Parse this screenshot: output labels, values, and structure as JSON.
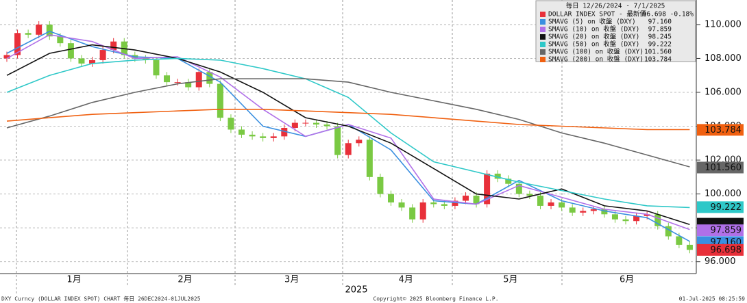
{
  "chart_data": {
    "type": "candlestick",
    "legend_title": "毎日 12/26/2024 - 7/1/2025",
    "year_label": "2025",
    "footer_left": "DXY Curncy (DOLLAR INDEX SPOT) CHART  毎日 26DEC2024-01JUL2025",
    "footer_center": "Copyright© 2025 Bloomberg Finance L.P.",
    "footer_right": "01-Jul-2025 08:25:59",
    "ylim": [
      95.3,
      111.45
    ],
    "yticks": [
      {
        "value": 96,
        "label": "96.000"
      },
      {
        "value": 98,
        "label": "98.000"
      },
      {
        "value": 100,
        "label": "100.000"
      },
      {
        "value": 102,
        "label": "102.000"
      },
      {
        "value": 104,
        "label": "104.000"
      },
      {
        "value": 106,
        "label": "106.000"
      },
      {
        "value": 108,
        "label": "108.000"
      },
      {
        "value": 110,
        "label": "110.000"
      }
    ],
    "xlim": [
      -0.32,
      64.1
    ],
    "xticks": [
      {
        "value": 6.3,
        "label": "1月"
      },
      {
        "value": 16.7,
        "label": "2月"
      },
      {
        "value": 26.7,
        "label": "3月"
      },
      {
        "value": 37.4,
        "label": "4月"
      },
      {
        "value": 47.2,
        "label": "5月"
      },
      {
        "value": 58.1,
        "label": "6月"
      }
    ],
    "grid": true,
    "up_color": "#e8303a",
    "down_color": "#7ac943",
    "price": {
      "name": "DOLLAR INDEX SPOT - 最新價",
      "color": "#e8303a",
      "change": "-0.18%",
      "last": {
        "value": 96.698,
        "label": "96.698"
      },
      "open": [
        108.0,
        108.2,
        109.5,
        109.4,
        110.0,
        109.3,
        108.9,
        108.0,
        107.7,
        107.9,
        108.5,
        109.0,
        108.2,
        108.0,
        107.9,
        107.0,
        106.6,
        106.6,
        106.3,
        107.2,
        106.5,
        104.5,
        103.8,
        103.5,
        103.4,
        103.3,
        103.4,
        103.9,
        104.2,
        104.2,
        104.1,
        104.0,
        102.3,
        103.0,
        103.2,
        101.0,
        100.0,
        99.5,
        99.2,
        98.5,
        99.5,
        99.4,
        99.3,
        99.6,
        99.9,
        99.4,
        101.2,
        100.9,
        100.6,
        100.0,
        99.9,
        99.3,
        99.5,
        99.2,
        98.9,
        99.0,
        99.1,
        98.8,
        98.5,
        98.4,
        98.7,
        98.8,
        98.1,
        97.5,
        97.0
      ],
      "high": [
        108.4,
        109.7,
        109.7,
        110.2,
        110.2,
        109.5,
        109.1,
        108.2,
        108.1,
        108.7,
        109.2,
        109.2,
        108.4,
        108.2,
        108.1,
        107.2,
        106.8,
        106.8,
        107.4,
        107.4,
        106.7,
        104.7,
        104.0,
        103.7,
        103.6,
        103.6,
        104.1,
        104.4,
        104.4,
        104.4,
        104.3,
        104.2,
        103.2,
        103.4,
        103.4,
        101.2,
        100.2,
        99.7,
        99.4,
        99.7,
        99.7,
        99.6,
        99.8,
        100.1,
        100.1,
        101.4,
        101.4,
        101.1,
        100.8,
        100.2,
        100.1,
        99.7,
        99.7,
        99.4,
        99.2,
        99.3,
        99.3,
        99.0,
        98.7,
        98.9,
        99.0,
        99.0,
        98.3,
        97.7,
        97.2
      ],
      "low": [
        107.8,
        108.0,
        109.2,
        109.2,
        109.1,
        108.7,
        107.8,
        107.5,
        107.5,
        107.7,
        108.3,
        108.0,
        107.8,
        107.7,
        106.8,
        106.4,
        106.4,
        106.1,
        106.1,
        106.3,
        104.3,
        103.6,
        103.3,
        103.2,
        103.1,
        103.1,
        103.2,
        103.7,
        104.0,
        103.9,
        103.8,
        102.1,
        102.1,
        102.8,
        100.8,
        99.8,
        99.3,
        99.0,
        98.3,
        98.3,
        99.2,
        99.1,
        99.1,
        99.4,
        99.2,
        99.2,
        100.7,
        100.4,
        99.8,
        99.7,
        99.1,
        99.1,
        99.0,
        98.7,
        98.7,
        98.8,
        98.6,
        98.3,
        98.2,
        98.2,
        98.5,
        97.9,
        97.3,
        96.8,
        96.5
      ],
      "close": [
        108.2,
        109.5,
        109.4,
        110.0,
        109.3,
        108.9,
        108.0,
        107.7,
        107.9,
        108.5,
        109.0,
        108.2,
        108.0,
        107.9,
        107.0,
        106.6,
        106.6,
        106.3,
        107.2,
        106.5,
        104.5,
        103.8,
        103.5,
        103.4,
        103.3,
        103.4,
        103.9,
        104.2,
        104.2,
        104.1,
        104.0,
        102.3,
        103.0,
        103.2,
        101.0,
        100.0,
        99.5,
        99.2,
        98.5,
        99.5,
        99.4,
        99.3,
        99.6,
        99.9,
        99.4,
        101.2,
        100.9,
        100.6,
        100.0,
        99.9,
        99.3,
        99.5,
        99.2,
        98.9,
        99.0,
        99.1,
        98.8,
        98.5,
        98.4,
        98.7,
        98.8,
        98.1,
        97.5,
        97.0,
        96.7
      ]
    },
    "ma_x": [
      0,
      4,
      8,
      12,
      16,
      20,
      24,
      28,
      32,
      36,
      40,
      44,
      48,
      52,
      56,
      60,
      64
    ],
    "series": [
      {
        "name": "SMAVG (5) on 收盤 (DXY)",
        "color": "#3a8fe0",
        "last": {
          "value": 97.16,
          "label": "97.160"
        },
        "values": [
          108.3,
          109.6,
          108.7,
          108.1,
          108.0,
          106.6,
          104.0,
          103.4,
          104.1,
          102.6,
          99.6,
          99.4,
          100.8,
          99.6,
          99.0,
          98.6,
          97.2
        ]
      },
      {
        "name": "SMAVG (10) on 收盤 (DXY)",
        "color": "#b070e8",
        "last": {
          "value": 97.859,
          "label": "97.859"
        },
        "values": [
          108.0,
          109.4,
          109.0,
          108.0,
          108.1,
          106.9,
          105.0,
          103.4,
          104.1,
          103.3,
          99.7,
          99.4,
          100.5,
          99.8,
          99.1,
          98.8,
          97.9
        ]
      },
      {
        "name": "SMAVG (20) on 收盤 (DXY)",
        "color": "#111111",
        "last": {
          "value": 98.245,
          "label": "98.245"
        },
        "values": [
          107.0,
          108.3,
          108.8,
          108.5,
          108.0,
          107.2,
          106.0,
          104.5,
          104.0,
          103.0,
          101.5,
          100.0,
          99.7,
          100.3,
          99.3,
          99.0,
          98.2
        ]
      },
      {
        "name": "SMAVG (50) on 收盤 (DXY)",
        "color": "#2ec8c8",
        "last": {
          "value": 99.222,
          "label": "99.222"
        },
        "values": [
          106.0,
          107.0,
          107.7,
          107.9,
          108.0,
          107.9,
          107.4,
          106.8,
          105.7,
          103.6,
          101.9,
          101.3,
          100.7,
          100.2,
          99.7,
          99.3,
          99.2
        ]
      },
      {
        "name": "SMAVG (100) on 收盤 (DXY)",
        "color": "#666666",
        "last": {
          "value": 101.56,
          "label": "101.560"
        },
        "values": [
          103.9,
          104.6,
          105.4,
          106.0,
          106.5,
          106.8,
          106.8,
          106.8,
          106.6,
          106.0,
          105.5,
          105.0,
          104.4,
          103.6,
          103.0,
          102.3,
          101.6
        ]
      },
      {
        "name": "SMAVG (200) on 收盤 (DXY)",
        "color": "#f06010",
        "last": {
          "value": 103.784,
          "label": "103.784"
        },
        "values": [
          104.3,
          104.5,
          104.7,
          104.8,
          104.9,
          105.0,
          105.0,
          104.9,
          104.8,
          104.7,
          104.5,
          104.3,
          104.1,
          104.0,
          103.9,
          103.8,
          103.8
        ]
      }
    ]
  }
}
